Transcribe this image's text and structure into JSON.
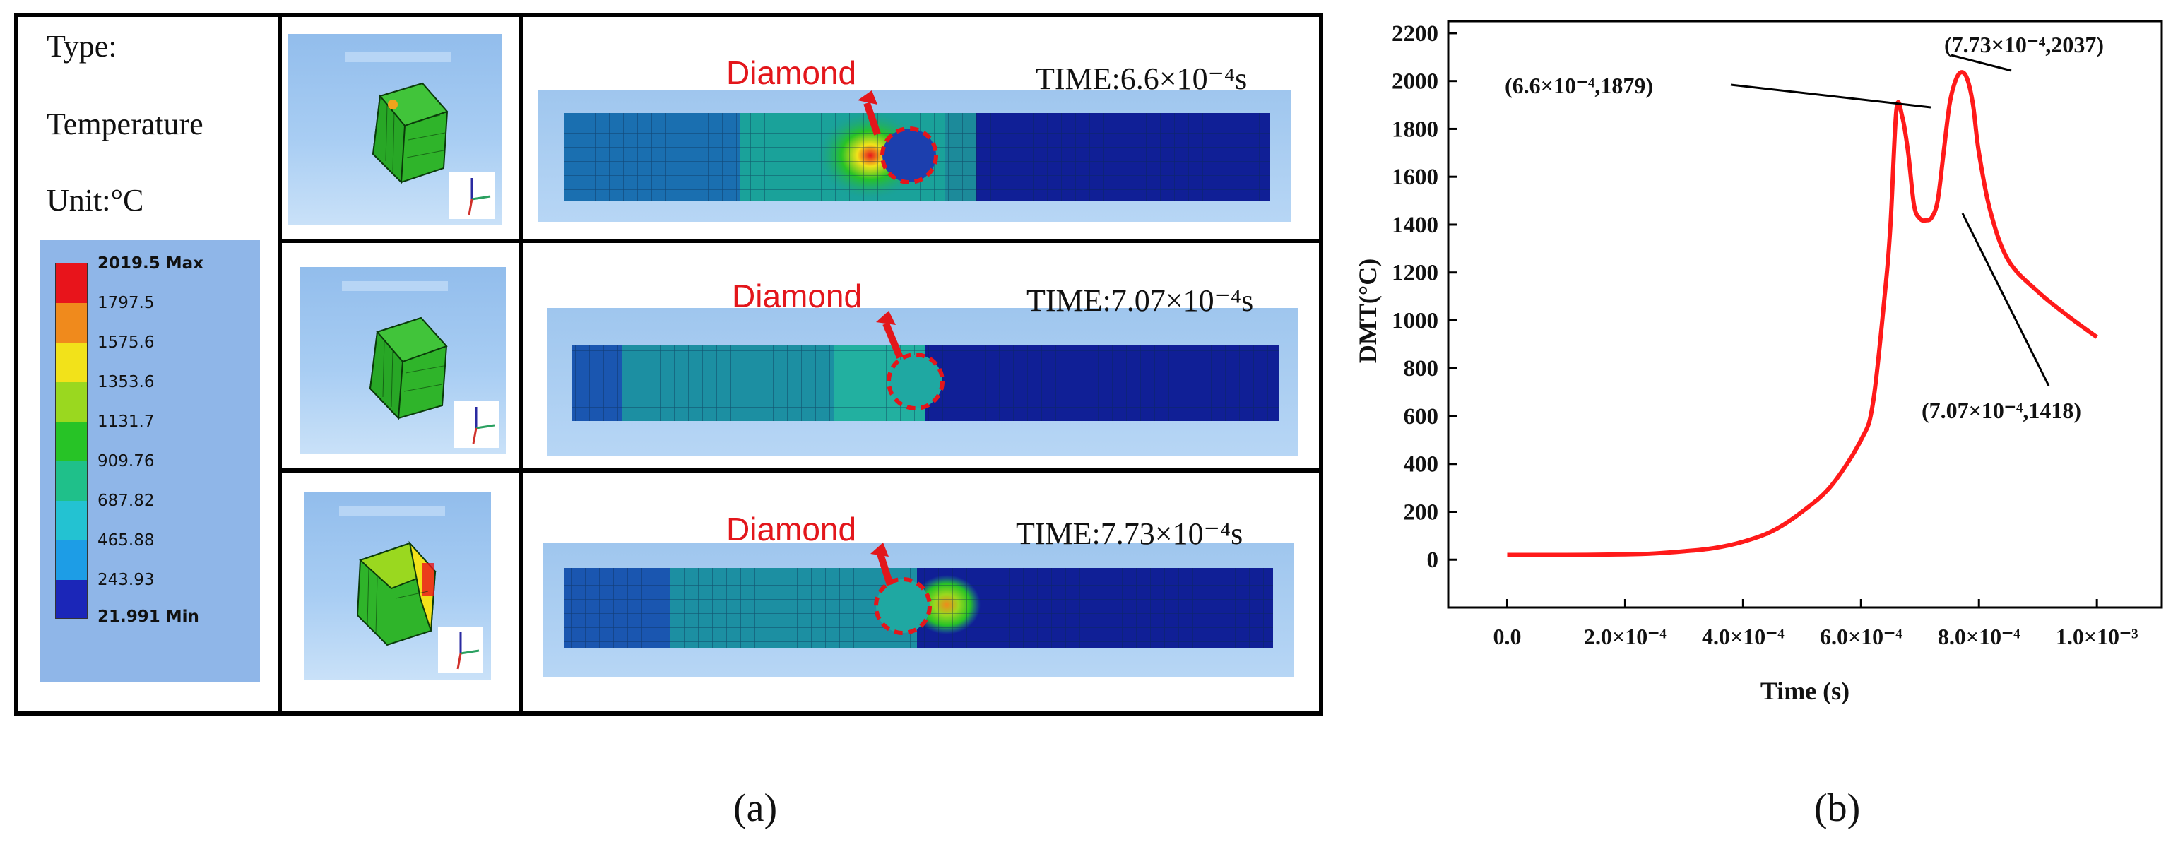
{
  "panel_a": {
    "caption": "(a)",
    "type_label": "Type:",
    "type_value": "Temperature",
    "unit_label": "Unit:°C",
    "legend": {
      "labels": [
        "2019.5 Max",
        "1797.5",
        "1575.6",
        "1353.6",
        "1131.7",
        "909.76",
        "687.82",
        "465.88",
        "243.93",
        "21.991 Min"
      ],
      "colors": [
        "#e8141b",
        "#f08a1c",
        "#f2e21a",
        "#9ad81f",
        "#27c326",
        "#1fc08a",
        "#23c2d2",
        "#1d9de6",
        "#2f63e0",
        "#1b26b8"
      ]
    },
    "frames": [
      {
        "diamond": "Diamond",
        "time": "TIME:6.6×10⁻⁴s"
      },
      {
        "diamond": "Diamond",
        "time": "TIME:7.07×10⁻⁴s"
      },
      {
        "diamond": "Diamond",
        "time": "TIME:7.73×10⁻⁴s"
      }
    ]
  },
  "panel_b": {
    "caption": "(b)",
    "chart_data": {
      "type": "line",
      "title": "",
      "xlabel": "Time (s)",
      "ylabel": "DMT(°C)",
      "xlim": [
        -0.0001,
        0.00111
      ],
      "ylim": [
        -200,
        2250
      ],
      "x_ticks": [
        0,
        0.0002,
        0.0004,
        0.0006,
        0.0008,
        0.001
      ],
      "x_tick_labels": [
        "0.0",
        "2.0×10⁻⁴",
        "4.0×10⁻⁴",
        "6.0×10⁻⁴",
        "8.0×10⁻⁴",
        "1.0×10⁻³"
      ],
      "y_ticks": [
        0,
        200,
        400,
        600,
        800,
        1000,
        1200,
        1400,
        1600,
        1800,
        2000,
        2200
      ],
      "y_tick_labels": [
        "0",
        "200",
        "400",
        "600",
        "800",
        "1000",
        "1200",
        "1400",
        "1600",
        "1800",
        "2000",
        "2200"
      ],
      "series": [
        {
          "name": "DMT",
          "color": "#ff1a1a",
          "x": [
            0,
            0.0001,
            0.0002,
            0.00025,
            0.0003,
            0.00035,
            0.0004,
            0.00045,
            0.0005,
            0.00055,
            0.0006,
            0.00062,
            0.00064,
            0.00065,
            0.00066,
            0.00067,
            0.00068,
            0.00069,
            0.0007,
            0.00071,
            0.00072,
            0.00073,
            0.00074,
            0.00075,
            0.00076,
            0.00077,
            0.00078,
            0.00079,
            0.0008,
            0.00082,
            0.00085,
            0.0009,
            0.00095,
            0.001
          ],
          "y": [
            20,
            20,
            22,
            26,
            35,
            48,
            75,
            120,
            200,
            310,
            500,
            650,
            1100,
            1400,
            1879,
            1850,
            1700,
            1480,
            1425,
            1418,
            1430,
            1500,
            1700,
            1900,
            2000,
            2037,
            2010,
            1900,
            1700,
            1450,
            1250,
            1120,
            1020,
            930
          ]
        }
      ],
      "annotations": [
        {
          "text": "(6.6×10⁻⁴,1879)",
          "x": 0.00066,
          "y": 1879
        },
        {
          "text": "(7.73×10⁻⁴,2037)",
          "x": 0.000773,
          "y": 2037
        },
        {
          "text": "(7.07×10⁻⁴,1418)",
          "x": 0.000707,
          "y": 1418
        }
      ]
    }
  }
}
